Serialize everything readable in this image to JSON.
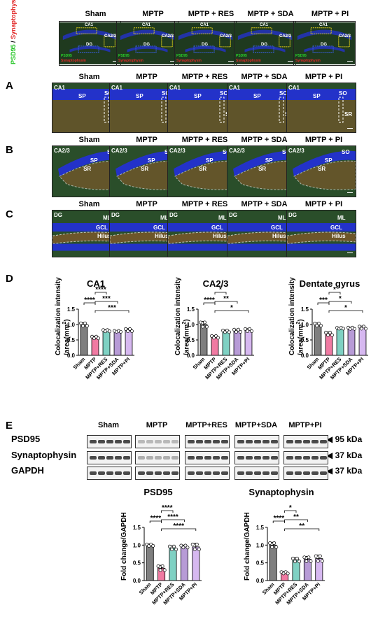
{
  "groups": [
    "Sham",
    "MPTP",
    "MPTP + RES",
    "MPTP + SDA",
    "MPTP + PI"
  ],
  "groups_short": [
    "Sham",
    "MPTP",
    "MPTP+RES",
    "MPTP+SDA",
    "MPTP+PI"
  ],
  "colors": {
    "Sham": "#7f7f7f",
    "MPTP": "#f07aa2",
    "MPTP+RES": "#7fd1c3",
    "MPTP+SDA": "#b79bd6",
    "MPTP+PI": "#d6b8f0",
    "dapi": "#2332c9",
    "tissue": "#2a4e2a",
    "synapse": "#8a5a2a"
  },
  "overview": {
    "side_label_green": "PSD95",
    "side_label_sep": " / ",
    "side_label_red": "Synaptophysin",
    "tile_labels": {
      "ca1": "CA1",
      "ca23": "CA2/3",
      "dg": "DG",
      "psd": "PSD95",
      "syn": "Synaptophysin"
    }
  },
  "panels": {
    "A": {
      "letter": "A",
      "region": "CA1",
      "labels": [
        "SO",
        "SP",
        "SR"
      ]
    },
    "B": {
      "letter": "B",
      "region": "CA2/3",
      "labels": [
        "SO",
        "SP",
        "SR"
      ]
    },
    "C": {
      "letter": "C",
      "region": "DG",
      "labels": [
        "ML",
        "GCL",
        "Hilus"
      ]
    },
    "D": {
      "letter": "D"
    },
    "E": {
      "letter": "E"
    }
  },
  "panel_d": {
    "ylabel_line1": "Colocalization intensity",
    "ylabel_line2": "/area(mm",
    "ylabel_sup": "2",
    "ylabel_end": ")",
    "charts": [
      {
        "title": "CA1",
        "type": "bar",
        "categories": [
          "Sham",
          "MPTP",
          "MPTP+RES",
          "MPTP+SDA",
          "MPTP+PI"
        ],
        "values": [
          1.0,
          0.58,
          0.8,
          0.78,
          0.82
        ],
        "errors": [
          0.06,
          0.04,
          0.03,
          0.02,
          0.05
        ],
        "ylim": [
          0,
          1.5
        ],
        "yticks": [
          "0.0",
          "0.5",
          "1.0",
          "1.5"
        ],
        "significance": [
          {
            "from": 0,
            "to": 1,
            "label": "****"
          },
          {
            "from": 1,
            "to": 2,
            "label": "****"
          },
          {
            "from": 1,
            "to": 3,
            "label": "***"
          },
          {
            "from": 1,
            "to": 4,
            "label": "***"
          }
        ]
      },
      {
        "title": "CA2/3",
        "type": "bar",
        "categories": [
          "Sham",
          "MPTP",
          "MPTP+RES",
          "MPTP+SDA",
          "MPTP+PI"
        ],
        "values": [
          1.0,
          0.6,
          0.78,
          0.8,
          0.82
        ],
        "errors": [
          0.1,
          0.04,
          0.04,
          0.05,
          0.05
        ],
        "ylim": [
          0,
          1.5
        ],
        "yticks": [
          "0.0",
          "0.5",
          "1.0",
          "1.5"
        ],
        "significance": [
          {
            "from": 0,
            "to": 1,
            "label": "****"
          },
          {
            "from": 1,
            "to": 2,
            "label": "*"
          },
          {
            "from": 1,
            "to": 3,
            "label": "**"
          },
          {
            "from": 1,
            "to": 4,
            "label": "*"
          }
        ]
      },
      {
        "title": "Dentate gyrus",
        "type": "bar",
        "categories": [
          "Sham",
          "MPTP",
          "MPTP+RES",
          "MPTP+SDA",
          "MPTP+PI"
        ],
        "values": [
          1.0,
          0.7,
          0.88,
          0.88,
          0.9
        ],
        "errors": [
          0.05,
          0.06,
          0.02,
          0.03,
          0.05
        ],
        "ylim": [
          0,
          1.5
        ],
        "yticks": [
          "0.0",
          "0.5",
          "1.0",
          "1.5"
        ],
        "significance": [
          {
            "from": 0,
            "to": 1,
            "label": "***"
          },
          {
            "from": 1,
            "to": 2,
            "label": "*"
          },
          {
            "from": 1,
            "to": 3,
            "label": "*"
          },
          {
            "from": 1,
            "to": 4,
            "label": "*"
          }
        ]
      }
    ]
  },
  "panel_e": {
    "blot_rows": [
      "PSD95",
      "Synaptophysin",
      "GAPDH"
    ],
    "kda": [
      "95 kDa",
      "37 kDa",
      "37 kDa"
    ],
    "arrow": "◀",
    "group_labels": [
      "Sham",
      "MPTP",
      "MPTP+RES",
      "MPTP+SDA",
      "MPTP+PI"
    ],
    "charts": [
      {
        "title": "PSD95",
        "type": "bar",
        "ylabel": "Fold change/GAPDH",
        "categories": [
          "Sham",
          "MPTP",
          "MPTP+RES",
          "MPTP+SDA",
          "MPTP+PI"
        ],
        "values": [
          1.0,
          0.35,
          0.92,
          0.96,
          0.95
        ],
        "errors": [
          0.03,
          0.08,
          0.06,
          0.04,
          0.1
        ],
        "ylim": [
          0,
          1.5
        ],
        "yticks": [
          "0.0",
          "0.5",
          "1.0",
          "1.5"
        ],
        "significance": [
          {
            "from": 0,
            "to": 1,
            "label": "****"
          },
          {
            "from": 1,
            "to": 2,
            "label": "****"
          },
          {
            "from": 1,
            "to": 3,
            "label": "****"
          },
          {
            "from": 1,
            "to": 4,
            "label": "****"
          }
        ]
      },
      {
        "title": "Synaptophysin",
        "type": "bar",
        "ylabel": "Fold change/GAPDH",
        "categories": [
          "Sham",
          "MPTP",
          "MPTP+RES",
          "MPTP+SDA",
          "MPTP+PI"
        ],
        "values": [
          1.0,
          0.22,
          0.58,
          0.6,
          0.62
        ],
        "errors": [
          0.08,
          0.03,
          0.06,
          0.08,
          0.1
        ],
        "ylim": [
          0,
          1.5
        ],
        "yticks": [
          "0.0",
          "0.5",
          "1.0",
          "1.5"
        ],
        "significance": [
          {
            "from": 0,
            "to": 1,
            "label": "****"
          },
          {
            "from": 1,
            "to": 2,
            "label": "*"
          },
          {
            "from": 1,
            "to": 3,
            "label": "**"
          },
          {
            "from": 1,
            "to": 4,
            "label": "**"
          }
        ]
      }
    ]
  }
}
